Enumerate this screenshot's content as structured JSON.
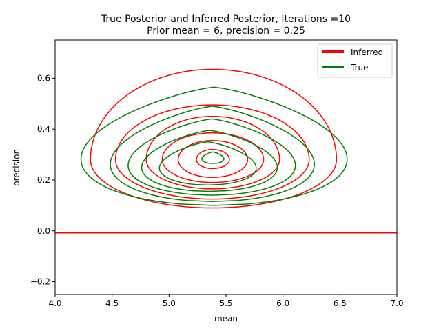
{
  "chart_data": {
    "type": "line",
    "title": "True Posterior and Inferred Posterior, Iterations =10",
    "subtitle": "Prior mean = 6, precision = 0.25",
    "xlabel": "mean",
    "ylabel": "precision",
    "xlim": [
      4.0,
      7.0
    ],
    "ylim": [
      -0.25,
      0.75
    ],
    "xticks": [
      4.0,
      4.5,
      5.0,
      5.5,
      6.0,
      6.5,
      7.0
    ],
    "xtick_labels": [
      "4.0",
      "4.5",
      "5.0",
      "5.5",
      "6.0",
      "6.5",
      "7.0"
    ],
    "yticks": [
      -0.2,
      0.0,
      0.2,
      0.4,
      0.6
    ],
    "ytick_labels": [
      "−0.2",
      "0.0",
      "0.2",
      "0.4",
      "0.6"
    ],
    "grid": false,
    "legend_position": "top-right",
    "series": [
      {
        "name": "Inferred",
        "color": "#ff0000",
        "center_mean": 5.38,
        "center_precision": 0.28,
        "contours": [
          {
            "mean_range": [
              5.24,
              5.53
            ],
            "precision_range": [
              0.245,
              0.32
            ]
          },
          {
            "mean_range": [
              5.08,
              5.69
            ],
            "precision_range": [
              0.21,
              0.355
            ]
          },
          {
            "mean_range": [
              4.94,
              5.83
            ],
            "precision_range": [
              0.19,
              0.385
            ]
          },
          {
            "mean_range": [
              4.8,
              5.97
            ],
            "precision_range": [
              0.165,
              0.45
            ]
          },
          {
            "mean_range": [
              4.53,
              6.23
            ],
            "precision_range": [
              0.125,
              0.495
            ]
          },
          {
            "mean_range": [
              4.31,
              6.47
            ],
            "precision_range": [
              0.09,
              0.635
            ]
          }
        ],
        "baseline_precision": -0.008
      },
      {
        "name": "True",
        "color": "#008000",
        "contours": [
          {
            "mean_range": [
              5.28,
              5.49
            ],
            "precision_range": [
              0.265,
              0.31
            ]
          },
          {
            "mean_range": [
              4.88,
              5.8
            ],
            "precision_range": [
              0.18,
              0.35
            ]
          },
          {
            "mean_range": [
              4.71,
              6.0
            ],
            "precision_range": [
              0.155,
              0.395
            ]
          },
          {
            "mean_range": [
              4.58,
              6.17
            ],
            "precision_range": [
              0.14,
              0.44
            ]
          },
          {
            "mean_range": [
              4.41,
              6.35
            ],
            "precision_range": [
              0.115,
              0.49
            ]
          },
          {
            "mean_range": [
              4.13,
              6.66
            ],
            "precision_range": [
              0.1,
              0.565
            ]
          }
        ]
      }
    ]
  }
}
